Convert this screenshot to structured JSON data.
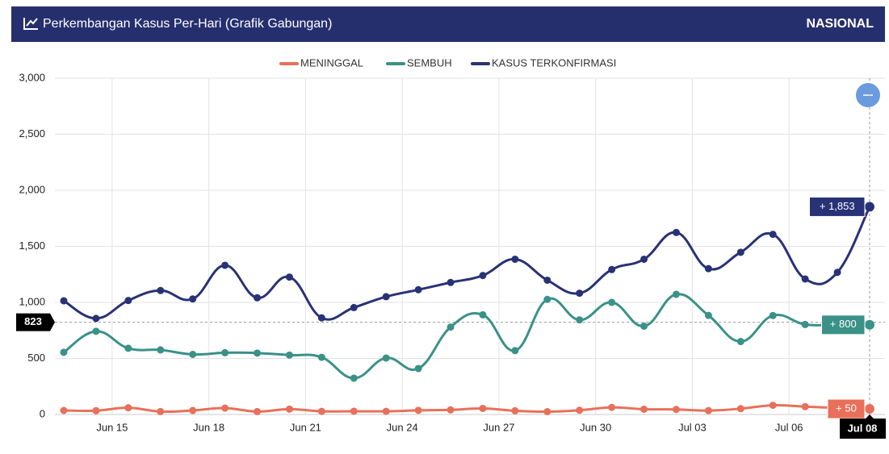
{
  "header": {
    "title": "Perkembangan Kasus Per-Hari (Grafik Gabungan)",
    "region": "NASIONAL"
  },
  "chart_data": {
    "type": "line",
    "categories": [
      null,
      null,
      "Jun 15",
      null,
      null,
      "Jun 18",
      null,
      null,
      "Jun 21",
      null,
      null,
      "Jun 24",
      null,
      null,
      "Jun 27",
      null,
      null,
      "Jun 30",
      null,
      null,
      "Jul 03",
      null,
      null,
      "Jul 06",
      null,
      "Jul 08"
    ],
    "series": [
      {
        "name": "MENINGGAL",
        "color": "#e8705a",
        "values": [
          36,
          34,
          60,
          26,
          36,
          57,
          26,
          48,
          28,
          29,
          28,
          37,
          41,
          54,
          33,
          25,
          38,
          63,
          47,
          45,
          35,
          52,
          82,
          70,
          58,
          50
        ],
        "value_labels": [
          null,
          null,
          null,
          null,
          null,
          null,
          null,
          null,
          null,
          null,
          null,
          null,
          null,
          null,
          null,
          null,
          null,
          null,
          null,
          null,
          null,
          null,
          null,
          null,
          null,
          "+ 50"
        ]
      },
      {
        "name": "SEMBUH",
        "color": "#3a9188",
        "values": [
          555,
          742,
          591,
          576,
          536,
          551,
          548,
          530,
          510,
          324,
          504,
          410,
          780,
          889,
          570,
          1027,
          844,
          1000,
          788,
          1072,
          884,
          651,
          883,
          803,
          801,
          800
        ],
        "value_labels": [
          null,
          null,
          null,
          null,
          null,
          null,
          null,
          null,
          null,
          null,
          null,
          null,
          null,
          null,
          null,
          null,
          null,
          null,
          null,
          null,
          null,
          null,
          null,
          null,
          null,
          "+ 800"
        ]
      },
      {
        "name": "KASUS TERKONFIRMASI",
        "color": "#283276",
        "values": [
          1014,
          857,
          1017,
          1106,
          1031,
          1331,
          1041,
          1226,
          862,
          954,
          1051,
          1113,
          1178,
          1240,
          1385,
          1198,
          1082,
          1293,
          1385,
          1624,
          1301,
          1447,
          1607,
          1209,
          1268,
          1853
        ],
        "value_labels": [
          null,
          null,
          null,
          null,
          null,
          null,
          null,
          null,
          null,
          null,
          null,
          null,
          null,
          null,
          null,
          null,
          null,
          null,
          null,
          null,
          null,
          null,
          null,
          null,
          null,
          "+ 1,853"
        ]
      }
    ],
    "ylim": [
      0,
      3000
    ],
    "yticks": [
      0,
      500,
      {
        "value": 1000,
        "label": "1,000"
      },
      {
        "value": 1500,
        "label": "1,500"
      },
      {
        "value": 2000,
        "label": "2,000"
      },
      {
        "value": 2500,
        "label": "2,500"
      },
      {
        "value": 3000,
        "label": "3,000"
      }
    ],
    "grid": true,
    "legend": "top",
    "cursor_value": 823
  }
}
